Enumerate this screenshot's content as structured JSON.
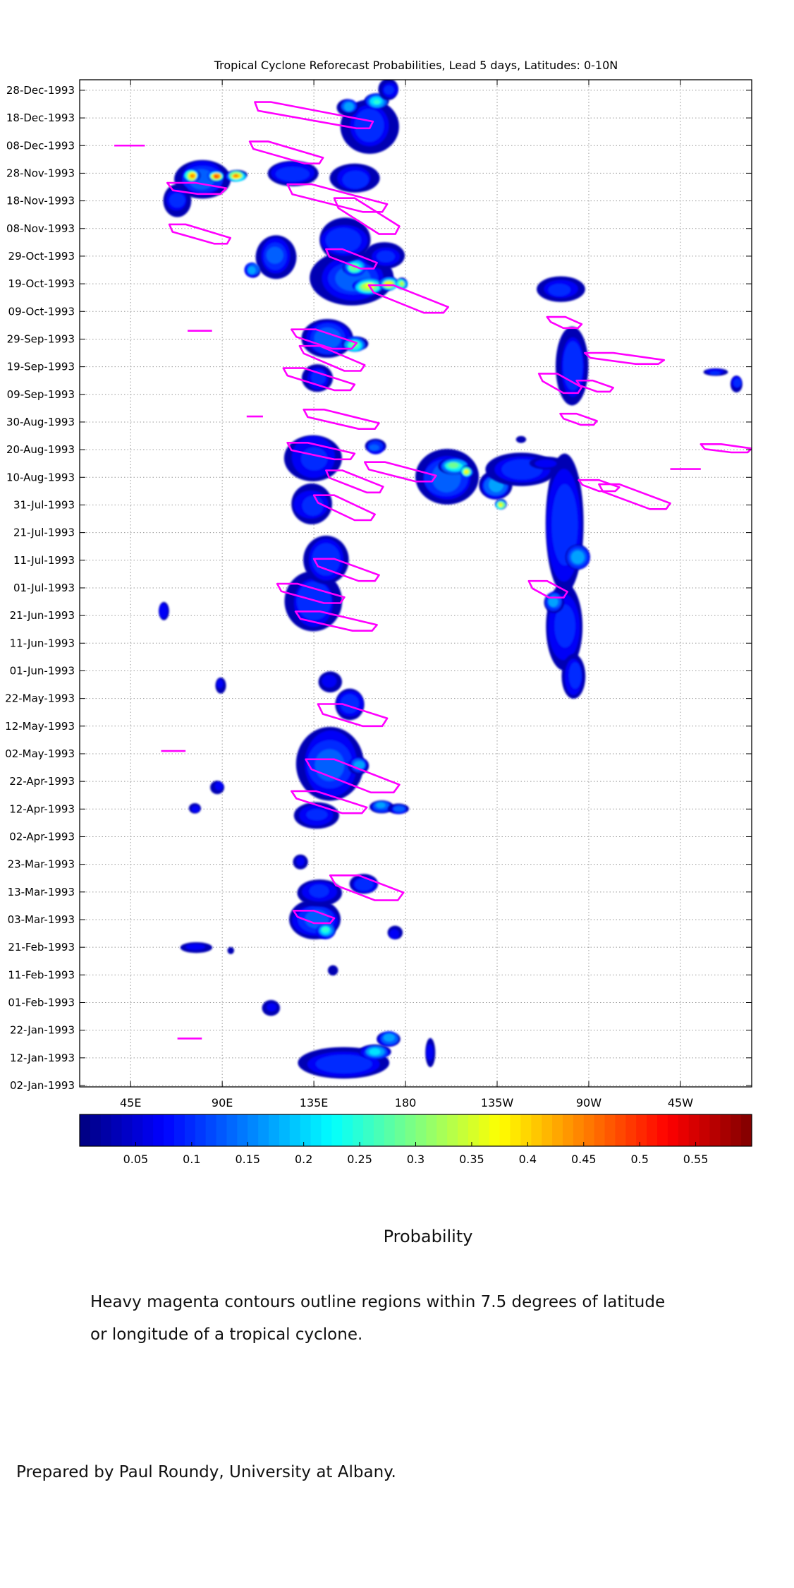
{
  "chart_data": {
    "type": "heatmap",
    "title": "Tropical Cyclone Reforecast Probabilities, Lead 5 days, Latitudes: 0-10N",
    "xlabel": "",
    "ylabel": "",
    "x_ticks": [
      {
        "label": "45E",
        "lon": 45
      },
      {
        "label": "90E",
        "lon": 90
      },
      {
        "label": "135E",
        "lon": 135
      },
      {
        "label": "180",
        "lon": 180
      },
      {
        "label": "135W",
        "lon": 225
      },
      {
        "label": "90W",
        "lon": 270
      },
      {
        "label": "45W",
        "lon": 315
      }
    ],
    "xlim_lon_east": [
      20,
      350
    ],
    "y_ticks": [
      "02-Jan-1993",
      "12-Jan-1993",
      "22-Jan-1993",
      "01-Feb-1993",
      "11-Feb-1993",
      "21-Feb-1993",
      "03-Mar-1993",
      "13-Mar-1993",
      "23-Mar-1993",
      "02-Apr-1993",
      "12-Apr-1993",
      "22-Apr-1993",
      "02-May-1993",
      "12-May-1993",
      "22-May-1993",
      "01-Jun-1993",
      "11-Jun-1993",
      "21-Jun-1993",
      "01-Jul-1993",
      "11-Jul-1993",
      "21-Jul-1993",
      "31-Jul-1993",
      "10-Aug-1993",
      "20-Aug-1993",
      "30-Aug-1993",
      "09-Sep-1993",
      "19-Sep-1993",
      "29-Sep-1993",
      "09-Oct-1993",
      "19-Oct-1993",
      "29-Oct-1993",
      "08-Nov-1993",
      "18-Nov-1993",
      "28-Nov-1993",
      "08-Dec-1993",
      "18-Dec-1993",
      "28-Dec-1993"
    ],
    "ylim_day_of_year": [
      2,
      363
    ],
    "grid": true,
    "colorbar": {
      "ticks": [
        0.05,
        0.1,
        0.15,
        0.2,
        0.25,
        0.3,
        0.35,
        0.4,
        0.45,
        0.5,
        0.55
      ],
      "tick_labels": [
        "0.05",
        "0.1",
        "0.15",
        "0.2",
        "0.25",
        "0.3",
        "0.35",
        "0.4",
        "0.45",
        "0.5",
        "0.55"
      ],
      "range": [
        0,
        0.6
      ],
      "colormap": "jet",
      "label": "Probability"
    },
    "probability_blobs": [
      {
        "lon": 150,
        "day": 10,
        "dlon": 24,
        "ddays": 6,
        "p": 0.12
      },
      {
        "lon": 165,
        "day": 14,
        "dlon": 8,
        "ddays": 3,
        "p": 0.22
      },
      {
        "lon": 172,
        "day": 19,
        "dlon": 6,
        "ddays": 3,
        "p": 0.2
      },
      {
        "lon": 192,
        "day": 14,
        "dlon": 3,
        "ddays": 6,
        "p": 0.07
      },
      {
        "lon": 114,
        "day": 30,
        "dlon": 5,
        "ddays": 3,
        "p": 0.07
      },
      {
        "lon": 144,
        "day": 44,
        "dlon": 3,
        "ddays": 2,
        "p": 0.06
      },
      {
        "lon": 77,
        "day": 52,
        "dlon": 8,
        "ddays": 2,
        "p": 0.08
      },
      {
        "lon": 94,
        "day": 51,
        "dlon": 2,
        "ddays": 1.5,
        "p": 0.06
      },
      {
        "lon": 136,
        "day": 62,
        "dlon": 14,
        "ddays": 7,
        "p": 0.14
      },
      {
        "lon": 141,
        "day": 58,
        "dlon": 5,
        "ddays": 3,
        "p": 0.26
      },
      {
        "lon": 175,
        "day": 57,
        "dlon": 4,
        "ddays": 3,
        "p": 0.08
      },
      {
        "lon": 138,
        "day": 72,
        "dlon": 12,
        "ddays": 5,
        "p": 0.1
      },
      {
        "lon": 160,
        "day": 75,
        "dlon": 8,
        "ddays": 4,
        "p": 0.12
      },
      {
        "lon": 128,
        "day": 83,
        "dlon": 4,
        "ddays": 3,
        "p": 0.07
      },
      {
        "lon": 136,
        "day": 100,
        "dlon": 12,
        "ddays": 5,
        "p": 0.1
      },
      {
        "lon": 168,
        "day": 103,
        "dlon": 6,
        "ddays": 2.5,
        "p": 0.18
      },
      {
        "lon": 177,
        "day": 102,
        "dlon": 5,
        "ddays": 2,
        "p": 0.15
      },
      {
        "lon": 77,
        "day": 102,
        "dlon": 3,
        "ddays": 2,
        "p": 0.09
      },
      {
        "lon": 88,
        "day": 110,
        "dlon": 4,
        "ddays": 3,
        "p": 0.07
      },
      {
        "lon": 143,
        "day": 118,
        "dlon": 18,
        "ddays": 15,
        "p": 0.13
      },
      {
        "lon": 157,
        "day": 118,
        "dlon": 5,
        "ddays": 3,
        "p": 0.2
      },
      {
        "lon": 153,
        "day": 140,
        "dlon": 8,
        "ddays": 6,
        "p": 0.12
      },
      {
        "lon": 143,
        "day": 148,
        "dlon": 6,
        "ddays": 4,
        "p": 0.08
      },
      {
        "lon": 89,
        "day": 147,
        "dlon": 3,
        "ddays": 3,
        "p": 0.07
      },
      {
        "lon": 135,
        "day": 177,
        "dlon": 14,
        "ddays": 12,
        "p": 0.12
      },
      {
        "lon": 141,
        "day": 192,
        "dlon": 12,
        "ddays": 10,
        "p": 0.12
      },
      {
        "lon": 134,
        "day": 212,
        "dlon": 12,
        "ddays": 8,
        "p": 0.1
      },
      {
        "lon": 61,
        "day": 174,
        "dlon": 3,
        "ddays": 4,
        "p": 0.09
      },
      {
        "lon": 258,
        "day": 205,
        "dlon": 11,
        "ddays": 28,
        "p": 0.12
      },
      {
        "lon": 265,
        "day": 193,
        "dlon": 7,
        "ddays": 5,
        "p": 0.2
      },
      {
        "lon": 258,
        "day": 168,
        "dlon": 10,
        "ddays": 16,
        "p": 0.11
      },
      {
        "lon": 253,
        "day": 177,
        "dlon": 5,
        "ddays": 4,
        "p": 0.2
      },
      {
        "lon": 263,
        "day": 150,
        "dlon": 6,
        "ddays": 9,
        "p": 0.11
      },
      {
        "lon": 200,
        "day": 222,
        "dlon": 15,
        "ddays": 10,
        "p": 0.15
      },
      {
        "lon": 204,
        "day": 226,
        "dlon": 8,
        "ddays": 3,
        "p": 0.3
      },
      {
        "lon": 210,
        "day": 224,
        "dlon": 3,
        "ddays": 2,
        "p": 0.4
      },
      {
        "lon": 224,
        "day": 219,
        "dlon": 8,
        "ddays": 5,
        "p": 0.2
      },
      {
        "lon": 227,
        "day": 212,
        "dlon": 3,
        "ddays": 2,
        "p": 0.38
      },
      {
        "lon": 237,
        "day": 225,
        "dlon": 18,
        "ddays": 6,
        "p": 0.12
      },
      {
        "lon": 135,
        "day": 229,
        "dlon": 14,
        "ddays": 10,
        "p": 0.1
      },
      {
        "lon": 165,
        "day": 233,
        "dlon": 6,
        "ddays": 3,
        "p": 0.13
      },
      {
        "lon": 137,
        "day": 258,
        "dlon": 8,
        "ddays": 6,
        "p": 0.1
      },
      {
        "lon": 142,
        "day": 272,
        "dlon": 14,
        "ddays": 8,
        "p": 0.14
      },
      {
        "lon": 155,
        "day": 270,
        "dlon": 6,
        "ddays": 3,
        "p": 0.3
      },
      {
        "lon": 262,
        "day": 262,
        "dlon": 8,
        "ddays": 15,
        "p": 0.12
      },
      {
        "lon": 256,
        "day": 290,
        "dlon": 12,
        "ddays": 5,
        "p": 0.1
      },
      {
        "lon": 332,
        "day": 260,
        "dlon": 6,
        "ddays": 1.5,
        "p": 0.1
      },
      {
        "lon": 343,
        "day": 256,
        "dlon": 3,
        "ddays": 3,
        "p": 0.12
      },
      {
        "lon": 154,
        "day": 294,
        "dlon": 20,
        "ddays": 10,
        "p": 0.14
      },
      {
        "lon": 162,
        "day": 291,
        "dlon": 8,
        "ddays": 3,
        "p": 0.38
      },
      {
        "lon": 172,
        "day": 292,
        "dlon": 5,
        "ddays": 2.5,
        "p": 0.4
      },
      {
        "lon": 155,
        "day": 298,
        "dlon": 6,
        "ddays": 3,
        "p": 0.32
      },
      {
        "lon": 178,
        "day": 292,
        "dlon": 3,
        "ddays": 2,
        "p": 0.35
      },
      {
        "lon": 116,
        "day": 302,
        "dlon": 10,
        "ddays": 8,
        "p": 0.13
      },
      {
        "lon": 105,
        "day": 297,
        "dlon": 4,
        "ddays": 3,
        "p": 0.2
      },
      {
        "lon": 150,
        "day": 308,
        "dlon": 14,
        "ddays": 8,
        "p": 0.12
      },
      {
        "lon": 170,
        "day": 302,
        "dlon": 10,
        "ddays": 5,
        "p": 0.1
      },
      {
        "lon": 80,
        "day": 330,
        "dlon": 14,
        "ddays": 8,
        "p": 0.14
      },
      {
        "lon": 75,
        "day": 331,
        "dlon": 4,
        "ddays": 2.5,
        "p": 0.45
      },
      {
        "lon": 87,
        "day": 331,
        "dlon": 4,
        "ddays": 2,
        "p": 0.5
      },
      {
        "lon": 97,
        "day": 331,
        "dlon": 5,
        "ddays": 2,
        "p": 0.45
      },
      {
        "lon": 68,
        "day": 322,
        "dlon": 8,
        "ddays": 6,
        "p": 0.1
      },
      {
        "lon": 125,
        "day": 332,
        "dlon": 14,
        "ddays": 5,
        "p": 0.12
      },
      {
        "lon": 155,
        "day": 330,
        "dlon": 12,
        "ddays": 6,
        "p": 0.12
      },
      {
        "lon": 162,
        "day": 349,
        "dlon": 14,
        "ddays": 10,
        "p": 0.12
      },
      {
        "lon": 152,
        "day": 356,
        "dlon": 5,
        "ddays": 3,
        "p": 0.2
      },
      {
        "lon": 166,
        "day": 358,
        "dlon": 6,
        "ddays": 3,
        "p": 0.25
      },
      {
        "lon": 172,
        "day": 362,
        "dlon": 5,
        "ddays": 4,
        "p": 0.1
      },
      {
        "lon": 249,
        "day": 227,
        "dlon": 9,
        "ddays": 2.5,
        "p": 0.09
      },
      {
        "lon": 237,
        "day": 236,
        "dlon": 3,
        "ddays": 1.5,
        "p": 0.06
      }
    ],
    "cyclone_contours": [
      {
        "lon": [
          110,
          160
        ],
        "day": [
          356,
          350
        ],
        "w": 8,
        "h": 3.5
      },
      {
        "lon": [
          108,
          135
        ],
        "day": [
          342,
          337
        ],
        "w": 9,
        "h": 3
      },
      {
        "lon": [
          128,
          165
        ],
        "day": [
          326,
          320
        ],
        "w": 12,
        "h": 4
      },
      {
        "lon": [
          150,
          172
        ],
        "day": [
          321,
          312
        ],
        "w": 10,
        "h": 4
      },
      {
        "lon": [
          70,
          85
        ],
        "day": [
          327,
          326
        ],
        "w": 14,
        "h": 3
      },
      {
        "lon": [
          68,
          90
        ],
        "day": [
          312,
          308
        ],
        "w": 8,
        "h": 3
      },
      {
        "lon": [
          145,
          162
        ],
        "day": [
          303,
          299
        ],
        "w": 8,
        "h": 3
      },
      {
        "lon": [
          168,
          195
        ],
        "day": [
          290,
          283
        ],
        "w": 12,
        "h": 3
      },
      {
        "lon": [
          130,
          150
        ],
        "day": [
          274,
          270
        ],
        "w": 12,
        "h": 3
      },
      {
        "lon": [
          133,
          155
        ],
        "day": [
          268,
          262
        ],
        "w": 10,
        "h": 3
      },
      {
        "lon": [
          125,
          150
        ],
        "day": [
          260,
          255
        ],
        "w": 10,
        "h": 3
      },
      {
        "lon": [
          135,
          162
        ],
        "day": [
          245,
          241
        ],
        "w": 10,
        "h": 3
      },
      {
        "lon": [
          127,
          150
        ],
        "day": [
          233,
          230
        ],
        "w": 10,
        "h": 3
      },
      {
        "lon": [
          165,
          190
        ],
        "day": [
          226,
          222
        ],
        "w": 10,
        "h": 3
      },
      {
        "lon": [
          145,
          165
        ],
        "day": [
          223,
          218
        ],
        "w": 8,
        "h": 3
      },
      {
        "lon": [
          140,
          160
        ],
        "day": [
          214,
          208
        ],
        "w": 10,
        "h": 3
      },
      {
        "lon": [
          140,
          162
        ],
        "day": [
          191,
          186
        ],
        "w": 10,
        "h": 3
      },
      {
        "lon": [
          122,
          145
        ],
        "day": [
          182,
          178
        ],
        "w": 10,
        "h": 3
      },
      {
        "lon": [
          132,
          160
        ],
        "day": [
          172,
          168
        ],
        "w": 12,
        "h": 3
      },
      {
        "lon": [
          143,
          165
        ],
        "day": [
          138,
          134
        ],
        "w": 12,
        "h": 4
      },
      {
        "lon": [
          138,
          170
        ],
        "day": [
          118,
          110
        ],
        "w": 14,
        "h": 4
      },
      {
        "lon": [
          130,
          155
        ],
        "day": [
          107,
          102
        ],
        "w": 12,
        "h": 3
      },
      {
        "lon": [
          150,
          172
        ],
        "day": [
          76,
          71
        ],
        "w": 14,
        "h": 4
      },
      {
        "lon": [
          130,
          140
        ],
        "day": [
          64,
          62
        ],
        "w": 10,
        "h": 2.5
      },
      {
        "lon": [
          245,
          255
        ],
        "day": [
          183,
          180
        ],
        "w": 9,
        "h": 3
      },
      {
        "lon": [
          254,
          262
        ],
        "day": [
          279,
          277
        ],
        "w": 9,
        "h": 2
      },
      {
        "lon": [
          250,
          262
        ],
        "day": [
          258,
          254
        ],
        "w": 9,
        "h": 3
      },
      {
        "lon": [
          260,
          270
        ],
        "day": [
          244,
          242
        ],
        "w": 8,
        "h": 2
      },
      {
        "lon": [
          270,
          280
        ],
        "day": [
          220,
          218
        ],
        "w": 10,
        "h": 2
      },
      {
        "lon": [
          268,
          278
        ],
        "day": [
          256,
          254
        ],
        "w": 8,
        "h": 2
      },
      {
        "lon": [
          275,
          300
        ],
        "day": [
          266,
          264
        ],
        "w": 14,
        "h": 2
      },
      {
        "lon": [
          280,
          305
        ],
        "day": [
          218,
          212
        ],
        "w": 10,
        "h": 3
      },
      {
        "lon": [
          330,
          345
        ],
        "day": [
          233,
          232
        ],
        "w": 10,
        "h": 2
      }
    ],
    "cyclone_segments": [
      {
        "lon0": 37,
        "lon1": 52,
        "day": 342
      },
      {
        "lon0": 102,
        "lon1": 110,
        "day": 244
      },
      {
        "lon0": 60,
        "lon1": 72,
        "day": 123
      },
      {
        "lon0": 68,
        "lon1": 80,
        "day": 19
      },
      {
        "lon0": 73,
        "lon1": 85,
        "day": 275
      },
      {
        "lon0": 310,
        "lon1": 325,
        "day": 225
      }
    ],
    "contour_color": "#ff00ff"
  },
  "captions": {
    "probability": "Probability",
    "contour_note_line1": "Heavy magenta contours outline regions within 7.5 degrees of latitude",
    "contour_note_line2": "or longitude of a tropical cyclone.",
    "credit": "Prepared by Paul Roundy, University at Albany."
  }
}
